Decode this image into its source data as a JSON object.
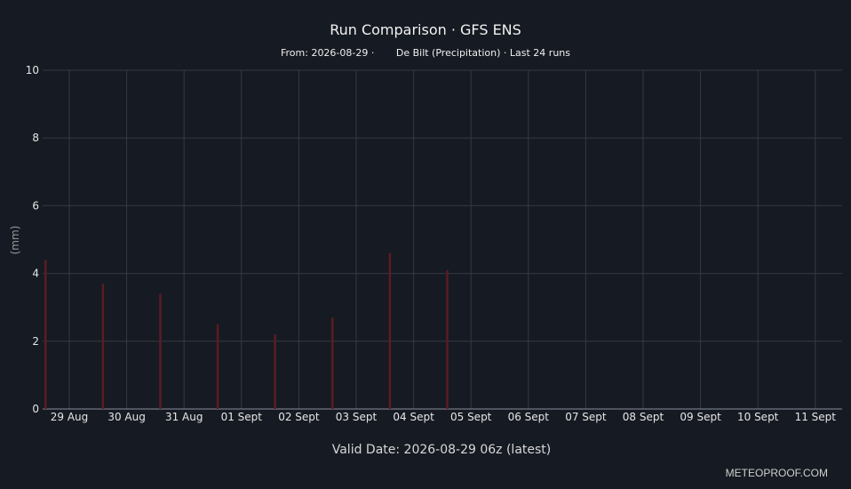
{
  "header": {
    "title": "Run Comparison · GFS ENS",
    "subtitle_from": "From: 2026-08-29 ·",
    "subtitle_location": "De Bilt (Precipitation) · Last 24 runs"
  },
  "footer": {
    "valid_date": "Valid Date: 2026-08-29 06z (latest)",
    "brand": "METEOPROOF.COM"
  },
  "chart_data": {
    "type": "bar",
    "title": "Run Comparison · GFS ENS",
    "xlabel": "",
    "ylabel": "(mm)",
    "ylim": [
      0,
      10
    ],
    "yticks": [
      0,
      2,
      4,
      6,
      8,
      10
    ],
    "categories": [
      "29 Aug",
      "30 Aug",
      "31 Aug",
      "01 Sept",
      "02 Sept",
      "03 Sept",
      "04 Sept",
      "05 Sept",
      "06 Sept",
      "07 Sept",
      "08 Sept",
      "09 Sept",
      "10 Sept",
      "11 Sept"
    ],
    "values": [
      4.4,
      3.7,
      3.4,
      2.5,
      2.2,
      2.7,
      4.6,
      4.1,
      0,
      0,
      0,
      0,
      0,
      0
    ],
    "bar_color": "#5a1c24",
    "grid": true,
    "colors": {
      "background": "#161a22",
      "grid": "#343944",
      "text": "#e6e6e6"
    }
  }
}
